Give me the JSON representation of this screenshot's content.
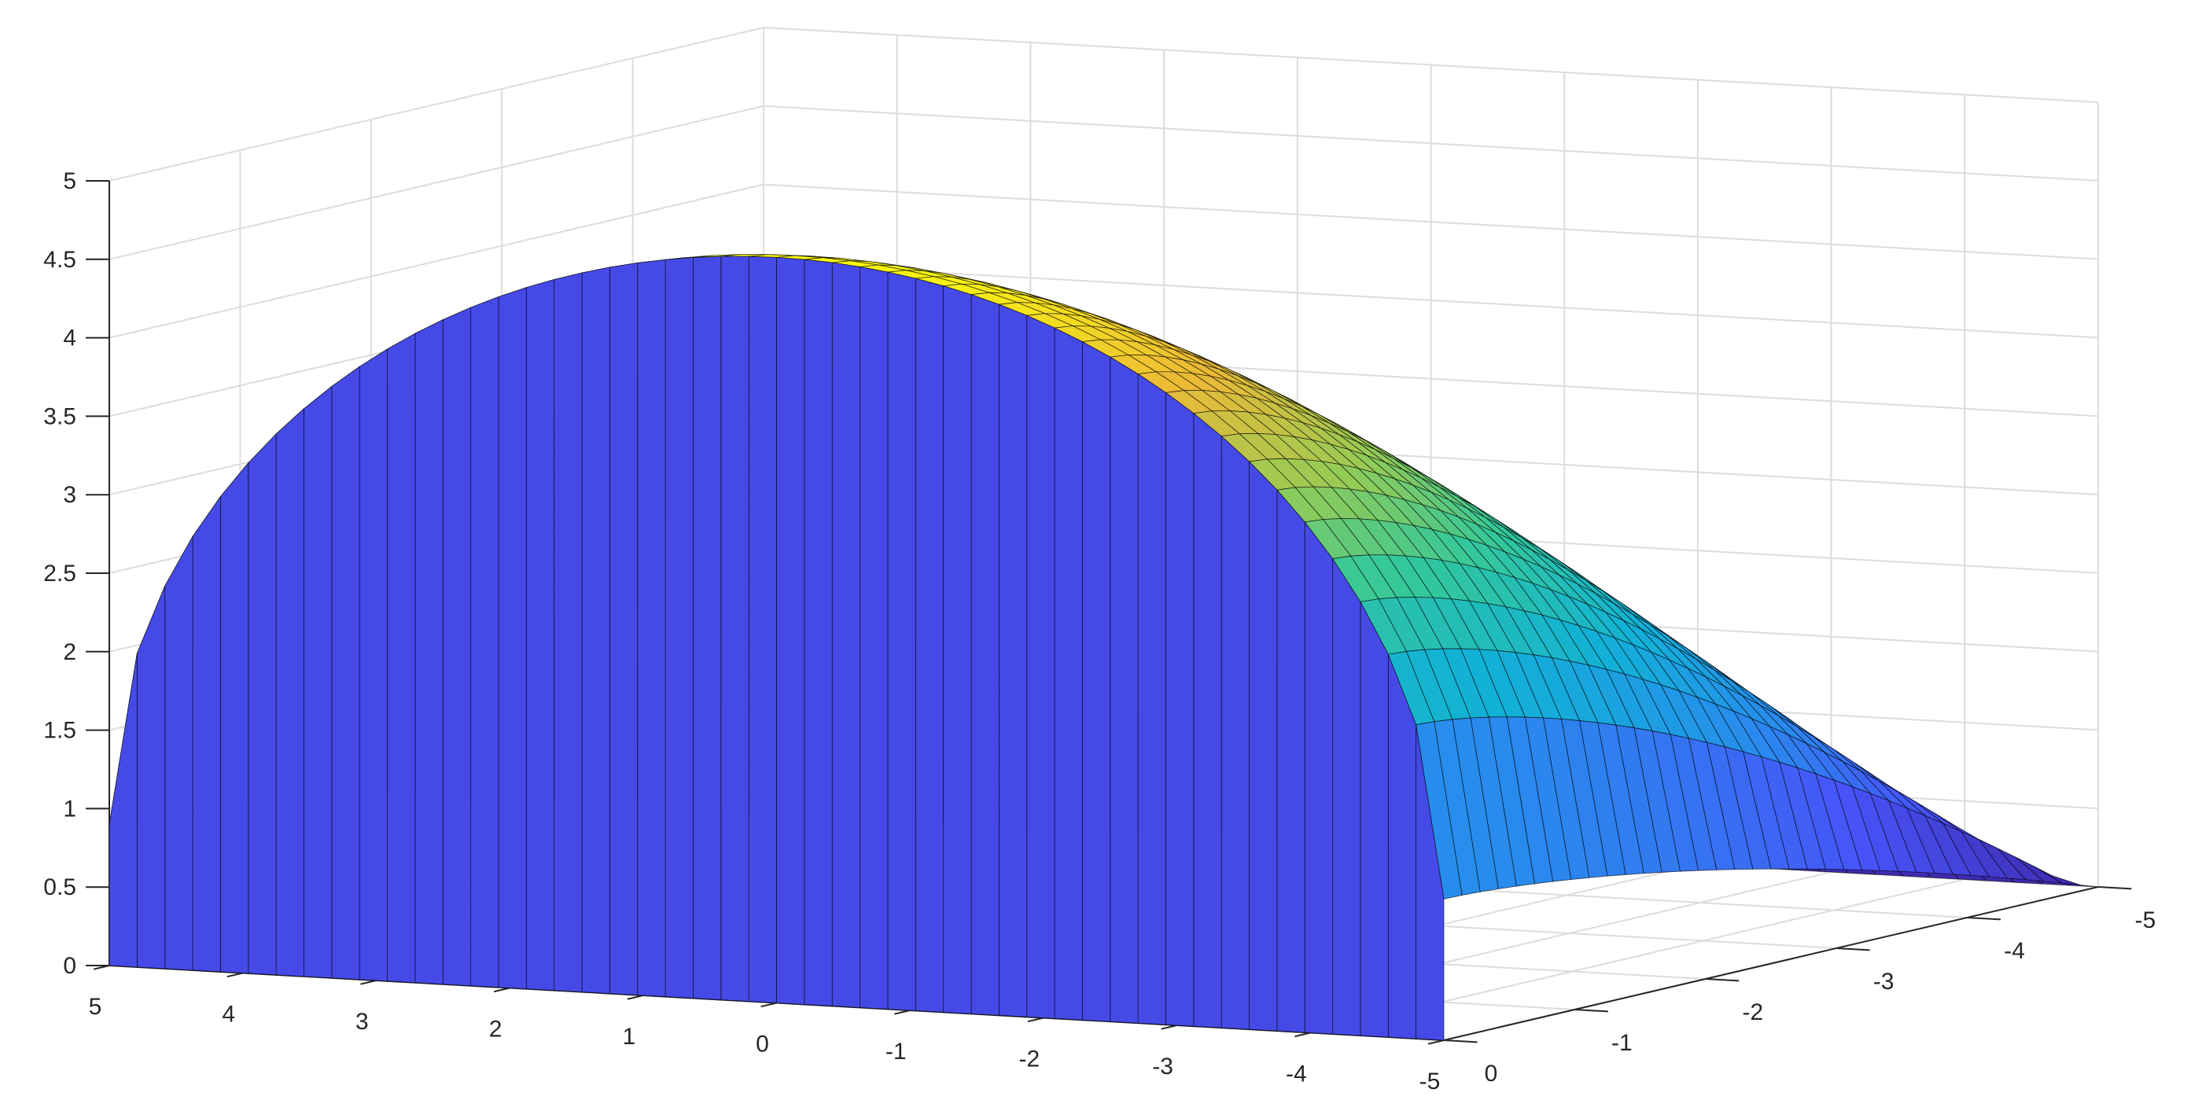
{
  "chart_data": {
    "type": "surface",
    "title": "",
    "xlabel": "",
    "ylabel": "",
    "zlabel": "",
    "xlim": [
      -5,
      5
    ],
    "ylim": [
      -5,
      0
    ],
    "zlim": [
      0,
      5
    ],
    "x_ticks": [
      "5",
      "4",
      "3",
      "2",
      "1",
      "0",
      "-1",
      "-2",
      "-3",
      "-4",
      "-5"
    ],
    "y_ticks": [
      "0",
      "-1",
      "-2",
      "-3",
      "-4",
      "-5"
    ],
    "z_ticks": [
      "0",
      "0.5",
      "1",
      "1.5",
      "2",
      "2.5",
      "3",
      "3.5",
      "4",
      "4.5",
      "5"
    ],
    "peak_z": 4.75,
    "edge_wall_z": 1,
    "grid": true,
    "colormap": "parula",
    "edge_color": "#000000",
    "grid_color": "#dcdcdc",
    "axis_color": "#262626"
  }
}
